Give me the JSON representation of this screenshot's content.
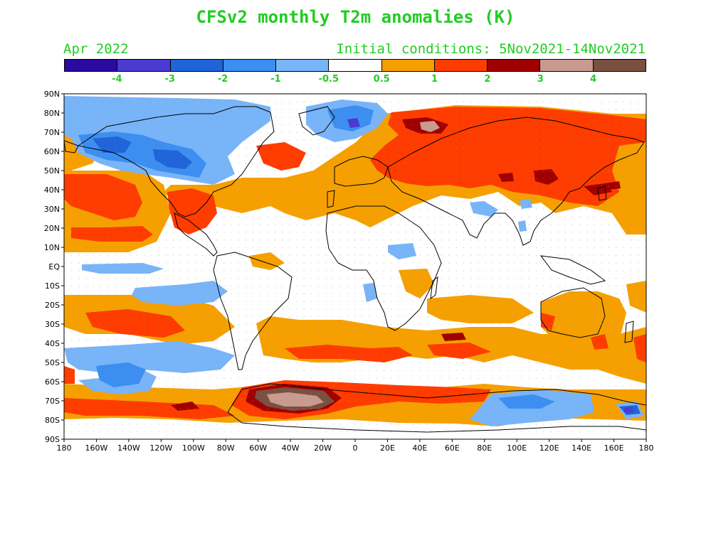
{
  "title": "CFSv2 monthly T2m anomalies (K)",
  "subtitle_left": "Apr 2022",
  "subtitle_right": "Initial conditions: 5Nov2021-14Nov2021",
  "text_color": "#22cc22",
  "colorbar": {
    "colors": [
      "#2a0aa0",
      "#4a3ad0",
      "#1f64d8",
      "#3c8ef0",
      "#78b4f8",
      "#ffffff",
      "#f5a000",
      "#ff3c00",
      "#a00000",
      "#c89a90",
      "#7a5040"
    ],
    "labels": [
      "-4",
      "-3",
      "-2",
      "-1",
      "-0.5",
      "0.5",
      "1",
      "2",
      "3",
      "4"
    ]
  },
  "map": {
    "lat_labels": [
      "90N",
      "80N",
      "70N",
      "60N",
      "50N",
      "40N",
      "30N",
      "20N",
      "10N",
      "EQ",
      "10S",
      "20S",
      "30S",
      "40S",
      "50S",
      "60S",
      "70S",
      "80S",
      "90S"
    ],
    "lon_labels": [
      "180",
      "160W",
      "140W",
      "120W",
      "100W",
      "80W",
      "60W",
      "40W",
      "20W",
      "0",
      "20E",
      "40E",
      "60E",
      "80E",
      "100E",
      "120E",
      "140E",
      "160E",
      "180"
    ]
  }
}
